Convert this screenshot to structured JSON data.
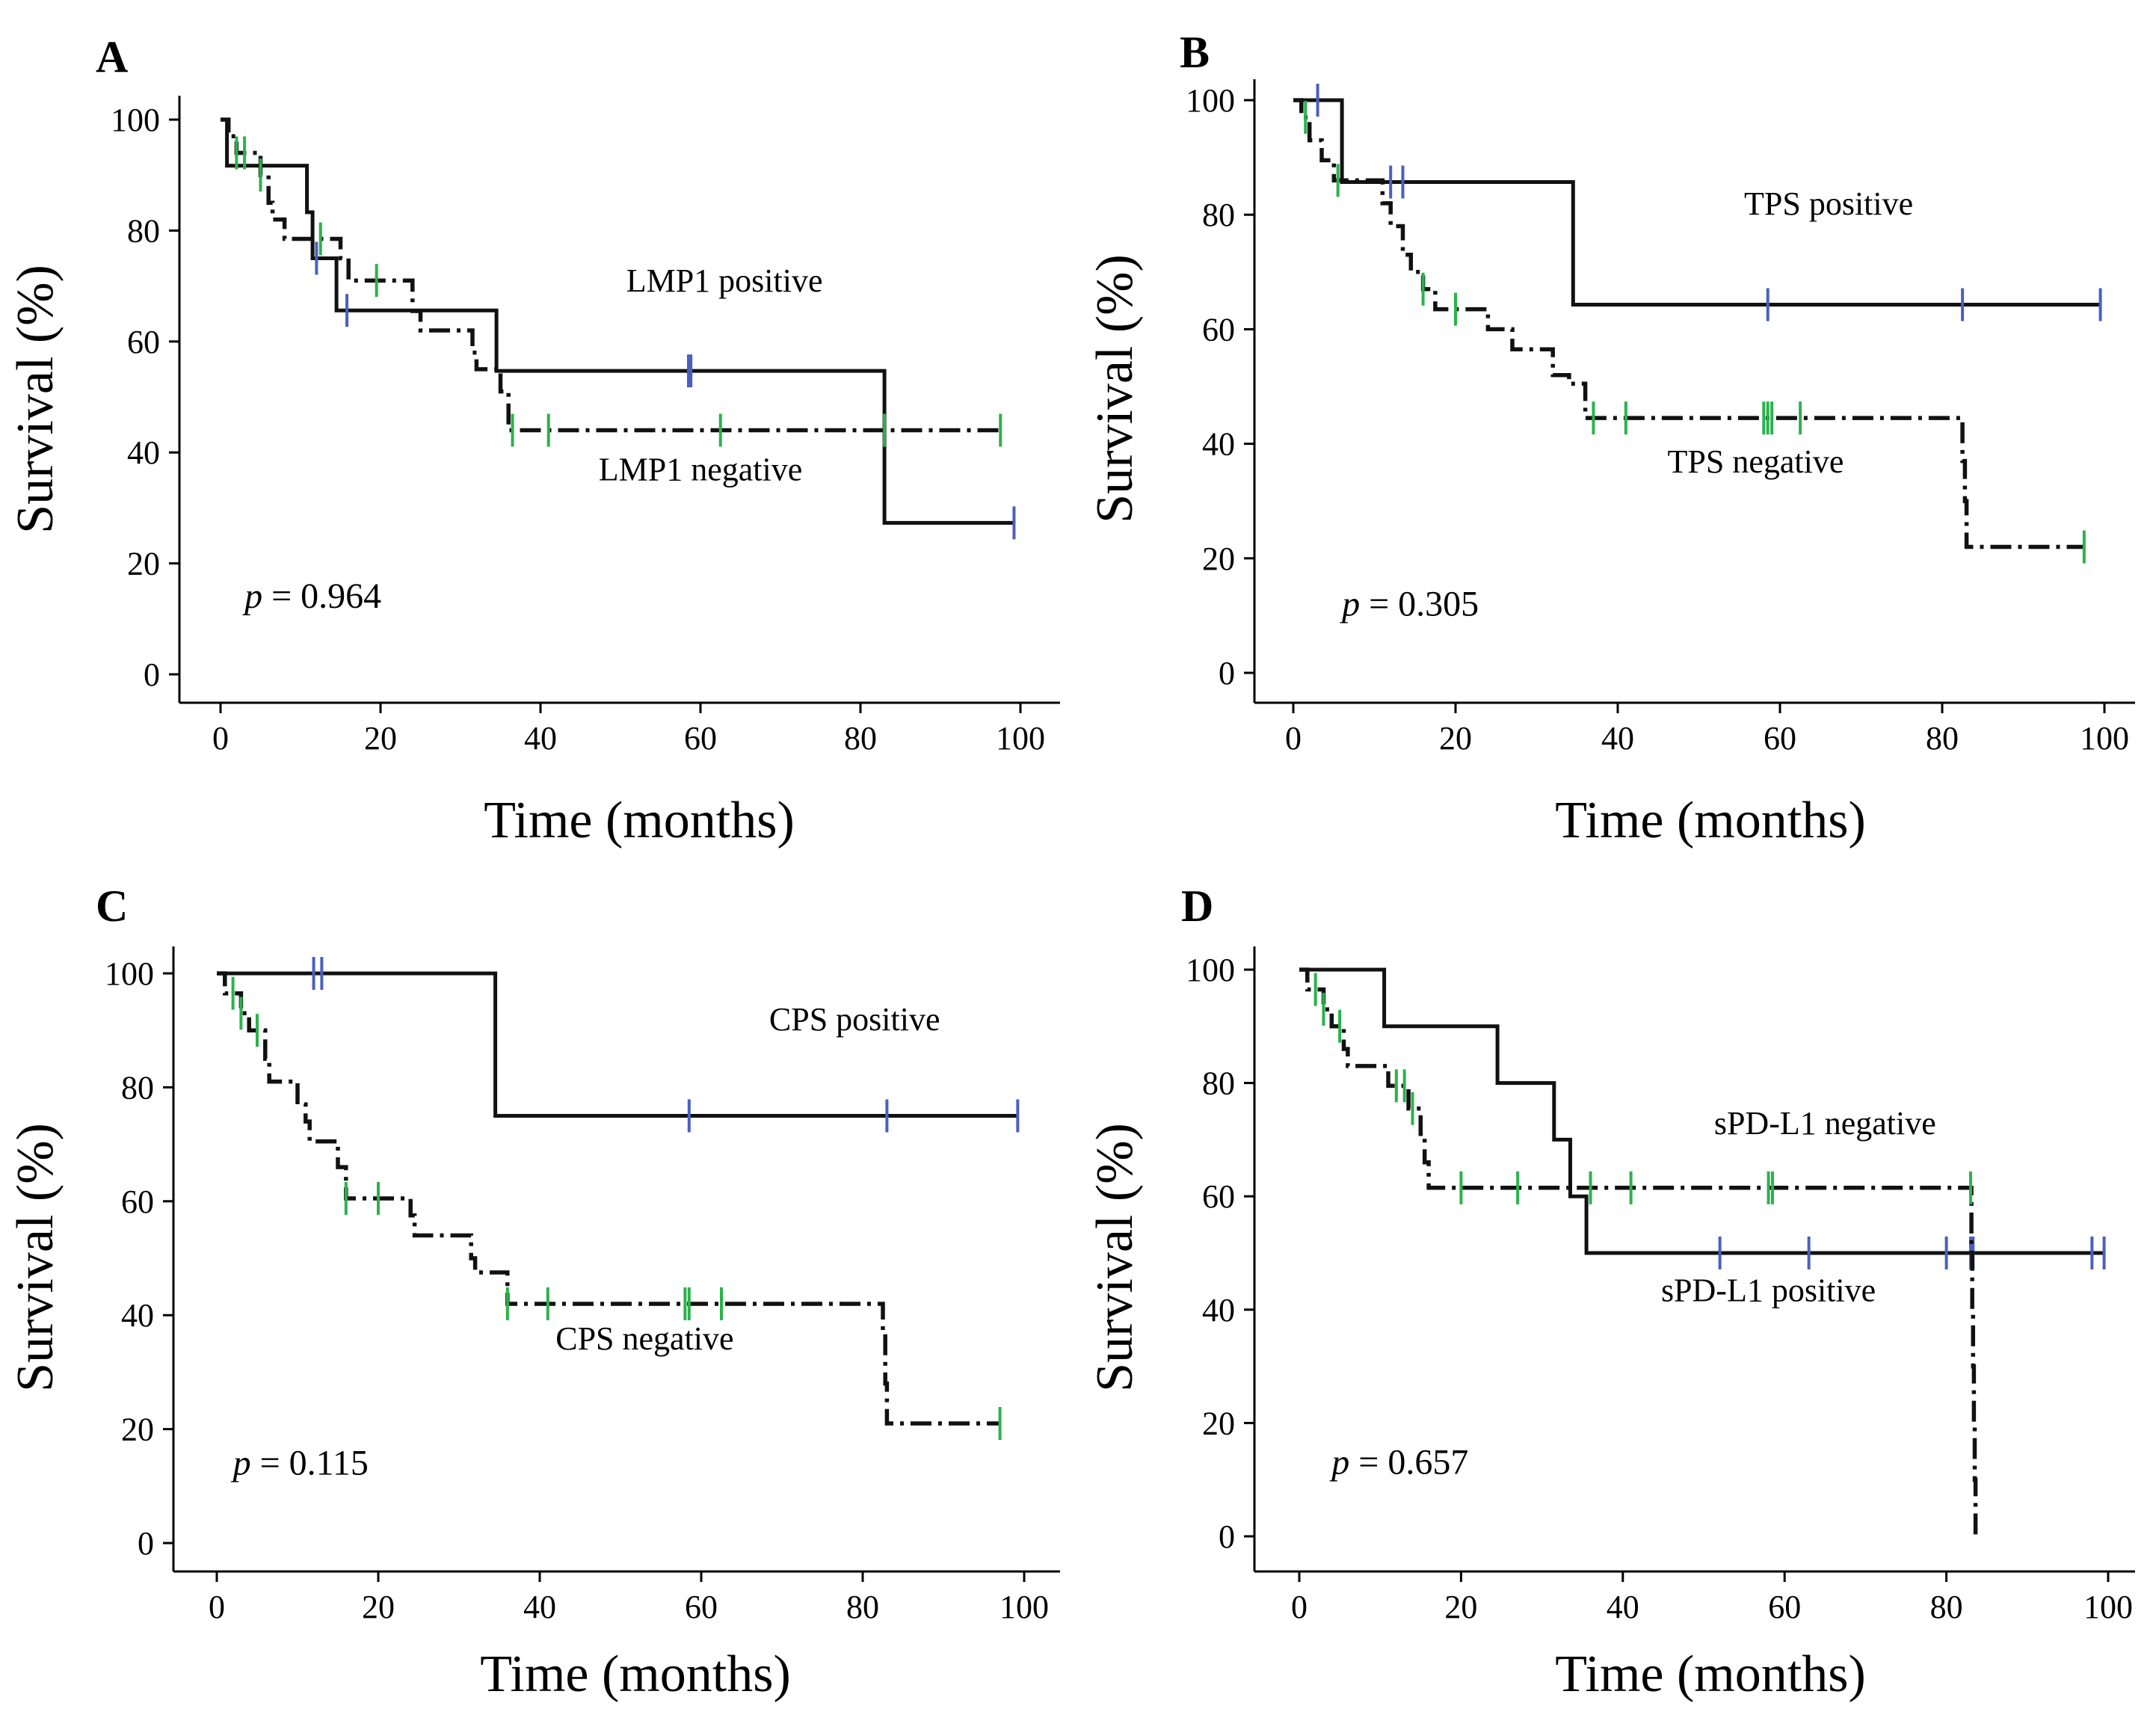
{
  "figure": {
    "background": "#ffffff"
  },
  "colors": {
    "solid_curve": "#111111",
    "dashed_curve": "#111111",
    "censor_solid": "#4b5fbf",
    "censor_dashed": "#2bb24c"
  },
  "chart_data": [
    {
      "type": "line",
      "subtype": "kaplan-meier",
      "panel": "A",
      "xlabel": "Time (months)",
      "ylabel": "Survival (%)",
      "xlim": [
        0,
        100
      ],
      "ylim": [
        0,
        100
      ],
      "xticks": [
        "0",
        "20",
        "40",
        "60",
        "80",
        "100"
      ],
      "yticks": [
        "0",
        "20",
        "40",
        "60",
        "80",
        "100"
      ],
      "p_prefix": "p",
      "p_value": "= 0.964",
      "series": [
        {
          "name": "LMP1 positive",
          "style": "solid",
          "steps": [
            [
              0,
              100
            ],
            [
              0.8,
              91.7
            ],
            [
              10.8,
              83.3
            ],
            [
              11.5,
              75
            ],
            [
              14.5,
              65.6
            ],
            [
              34.5,
              54.7
            ],
            [
              83,
              27.3
            ],
            [
              99.2,
              27.3
            ]
          ],
          "censors": [
            12,
            15.8,
            58.5,
            58.8,
            99.2
          ]
        },
        {
          "name": "LMP1 negative",
          "style": "dashdot",
          "steps": [
            [
              0,
              100
            ],
            [
              1,
              97
            ],
            [
              2,
              94
            ],
            [
              5,
              90
            ],
            [
              6,
              85
            ],
            [
              6.5,
              82
            ],
            [
              8,
              78.5
            ],
            [
              15,
              75
            ],
            [
              16,
              71
            ],
            [
              24,
              65.5
            ],
            [
              25,
              62
            ],
            [
              31.5,
              58
            ],
            [
              32,
              55
            ],
            [
              35,
              51
            ],
            [
              36,
              44
            ],
            [
              97.5,
              44
            ]
          ],
          "censors": [
            2,
            3,
            5,
            12.5,
            19.5,
            36.5,
            41,
            62.5,
            83,
            97.5
          ]
        }
      ],
      "labels": [
        {
          "text": "LMP1 positive",
          "x": 63,
          "y": 69
        },
        {
          "text": "LMP1 negative",
          "x": 60,
          "y": 35
        }
      ],
      "p_position": {
        "x": 3,
        "y": 12
      }
    },
    {
      "type": "line",
      "subtype": "kaplan-meier",
      "panel": "B",
      "xlabel": "Time (months)",
      "ylabel": "Survival (%)",
      "xlim": [
        0,
        100
      ],
      "ylim": [
        0,
        100
      ],
      "xticks": [
        "0",
        "20",
        "40",
        "60",
        "80",
        "100"
      ],
      "yticks": [
        "0",
        "20",
        "40",
        "60",
        "80",
        "100"
      ],
      "p_prefix": "p",
      "p_value": "= 0.305",
      "series": [
        {
          "name": "TPS positive",
          "style": "solid",
          "steps": [
            [
              0,
              100
            ],
            [
              6,
              85.7
            ],
            [
              34.5,
              64.3
            ],
            [
              99.5,
              64.3
            ]
          ],
          "censors": [
            3,
            12,
            13.5,
            58.5,
            82.5,
            99.5
          ]
        },
        {
          "name": "TPS negative",
          "style": "dashdot",
          "steps": [
            [
              0,
              100
            ],
            [
              1,
              97
            ],
            [
              2,
              93
            ],
            [
              3.5,
              89.5
            ],
            [
              5,
              86
            ],
            [
              11,
              82
            ],
            [
              12,
              78
            ],
            [
              13.5,
              73
            ],
            [
              14.5,
              70
            ],
            [
              16,
              67
            ],
            [
              17.5,
              63.5
            ],
            [
              24,
              60
            ],
            [
              27,
              56.5
            ],
            [
              32,
              52
            ],
            [
              34,
              50.5
            ],
            [
              36,
              44.5
            ],
            [
              82.5,
              37
            ],
            [
              82.8,
              30
            ],
            [
              83,
              22
            ],
            [
              97.5,
              22
            ]
          ],
          "censors": [
            1.5,
            5.5,
            16,
            20,
            37,
            41,
            58,
            58.5,
            59,
            62.5,
            97.5
          ]
        }
      ],
      "labels": [
        {
          "text": "TPS positive",
          "x": 66,
          "y": 80
        },
        {
          "text": "TPS negative",
          "x": 57,
          "y": 35
        }
      ],
      "p_position": {
        "x": 6,
        "y": 10
      }
    },
    {
      "type": "line",
      "subtype": "kaplan-meier",
      "panel": "C",
      "xlabel": "Time (months)",
      "ylabel": "Survival (%)",
      "xlim": [
        0,
        100
      ],
      "ylim": [
        0,
        100
      ],
      "xticks": [
        "0",
        "20",
        "40",
        "60",
        "80",
        "100"
      ],
      "yticks": [
        "0",
        "20",
        "40",
        "60",
        "80",
        "100"
      ],
      "p_prefix": "p",
      "p_value": "= 0.115",
      "series": [
        {
          "name": "CPS positive",
          "style": "solid",
          "steps": [
            [
              0,
              100
            ],
            [
              34.5,
              75
            ],
            [
              99.2,
              75
            ]
          ],
          "censors": [
            12,
            13,
            58.5,
            83,
            99.2
          ]
        },
        {
          "name": "CPS negative",
          "style": "dashdot",
          "steps": [
            [
              0,
              100
            ],
            [
              1,
              96.5
            ],
            [
              3,
              93
            ],
            [
              4,
              90
            ],
            [
              6,
              85
            ],
            [
              6.5,
              81
            ],
            [
              10,
              77
            ],
            [
              11,
              74
            ],
            [
              11.5,
              70.5
            ],
            [
              15,
              66
            ],
            [
              16,
              60.5
            ],
            [
              24,
              57.5
            ],
            [
              24.5,
              54
            ],
            [
              31.5,
              50
            ],
            [
              32,
              47.5
            ],
            [
              36,
              42
            ],
            [
              82.5,
              37
            ],
            [
              82.8,
              28
            ],
            [
              83,
              21
            ],
            [
              97,
              21
            ]
          ],
          "censors": [
            2,
            3,
            5,
            16,
            20,
            36,
            41,
            58,
            58.5,
            62.5,
            97
          ]
        }
      ],
      "labels": [
        {
          "text": "CPS positive",
          "x": 79,
          "y": 90
        },
        {
          "text": "CPS negative",
          "x": 53,
          "y": 34
        }
      ],
      "p_position": {
        "x": 2,
        "y": 12
      }
    },
    {
      "type": "line",
      "subtype": "kaplan-meier",
      "panel": "D",
      "xlabel": "Time (months)",
      "ylabel": "Survival (%)",
      "xlim": [
        0,
        100
      ],
      "ylim": [
        0,
        100
      ],
      "xticks": [
        "0",
        "20",
        "40",
        "60",
        "80",
        "100"
      ],
      "yticks": [
        "0",
        "20",
        "40",
        "60",
        "80",
        "100"
      ],
      "p_prefix": "p",
      "p_value": "= 0.657",
      "series": [
        {
          "name": "sPD-L1 positive",
          "style": "solid",
          "steps": [
            [
              0,
              100
            ],
            [
              10.5,
              90
            ],
            [
              24.5,
              80
            ],
            [
              31.5,
              70
            ],
            [
              33.5,
              60
            ],
            [
              35.5,
              50
            ],
            [
              99.5,
              50
            ]
          ],
          "censors": [
            52,
            63,
            80,
            83,
            83.3,
            98,
            99.5
          ]
        },
        {
          "name": "sPD-L1 negative",
          "style": "dashdot",
          "steps": [
            [
              0,
              100
            ],
            [
              1,
              96.5
            ],
            [
              3,
              93
            ],
            [
              4,
              90
            ],
            [
              5.5,
              86
            ],
            [
              6,
              83
            ],
            [
              11,
              79.5
            ],
            [
              13.5,
              75.5
            ],
            [
              15,
              71
            ],
            [
              15.5,
              66
            ],
            [
              16,
              61.5
            ],
            [
              83,
              61.5
            ],
            [
              83.1,
              50
            ],
            [
              83.2,
              40
            ],
            [
              83.3,
              30
            ],
            [
              83.4,
              20
            ],
            [
              83.5,
              10
            ],
            [
              83.6,
              0
            ]
          ],
          "censors": [
            2,
            3,
            5,
            12,
            13,
            14,
            20,
            27,
            36,
            41,
            58,
            58.5,
            83
          ]
        }
      ],
      "labels": [
        {
          "text": "sPD-L1 negative",
          "x": 65,
          "y": 71
        },
        {
          "text": "sPD-L1 positive",
          "x": 58,
          "y": 41.5
        }
      ],
      "p_position": {
        "x": 4,
        "y": 11
      }
    }
  ]
}
